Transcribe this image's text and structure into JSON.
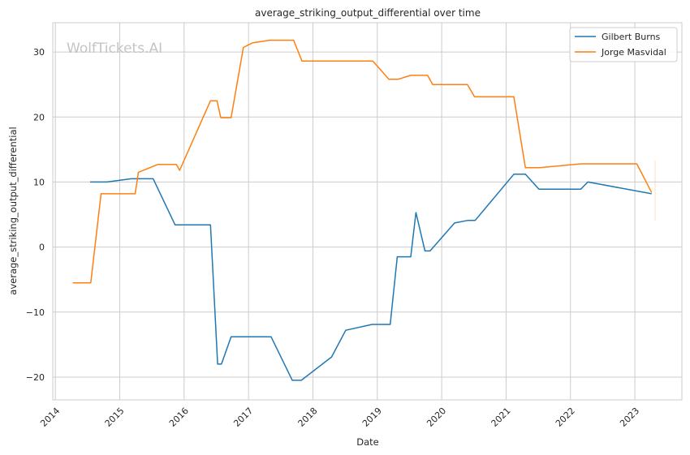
{
  "chart_data": {
    "type": "line",
    "title": "average_striking_output_differential over time",
    "xlabel": "Date",
    "ylabel": "average_striking_output_differential",
    "watermark": "WolfTickets.AI",
    "xlim": [
      2013.96,
      2023.73
    ],
    "ylim": [
      -23.5,
      34.5
    ],
    "x_ticks": [
      2014,
      2015,
      2016,
      2017,
      2018,
      2019,
      2020,
      2021,
      2022,
      2023
    ],
    "y_ticks": [
      -20,
      -10,
      0,
      10,
      20,
      30
    ],
    "y_tick_labels": [
      "−20",
      "−10",
      "0",
      "10",
      "20",
      "30"
    ],
    "grid": true,
    "legend_position": "top-right",
    "series": [
      {
        "name": "Gilbert Burns",
        "color": "#1f77b4",
        "points": [
          [
            2014.54,
            10.0
          ],
          [
            2014.8,
            10.0
          ],
          [
            2015.18,
            10.5
          ],
          [
            2015.52,
            10.5
          ],
          [
            2015.86,
            3.4
          ],
          [
            2016.41,
            3.4
          ],
          [
            2016.52,
            -18.0
          ],
          [
            2016.58,
            -18.0
          ],
          [
            2016.73,
            -13.8
          ],
          [
            2017.35,
            -13.8
          ],
          [
            2017.68,
            -20.5
          ],
          [
            2017.82,
            -20.5
          ],
          [
            2018.29,
            -16.9
          ],
          [
            2018.51,
            -12.8
          ],
          [
            2018.92,
            -11.9
          ],
          [
            2019.2,
            -11.9
          ],
          [
            2019.31,
            -1.5
          ],
          [
            2019.52,
            -1.5
          ],
          [
            2019.6,
            5.3
          ],
          [
            2019.74,
            -0.6
          ],
          [
            2019.82,
            -0.6
          ],
          [
            2020.2,
            3.7
          ],
          [
            2020.41,
            4.1
          ],
          [
            2020.52,
            4.1
          ],
          [
            2021.12,
            11.2
          ],
          [
            2021.3,
            11.2
          ],
          [
            2021.51,
            8.9
          ],
          [
            2022.16,
            8.9
          ],
          [
            2022.27,
            10.0
          ],
          [
            2023.26,
            8.2
          ]
        ]
      },
      {
        "name": "Jorge Masvidal",
        "color": "#ff7f0e",
        "points": [
          [
            2014.27,
            -5.5
          ],
          [
            2014.55,
            -5.5
          ],
          [
            2014.71,
            8.2
          ],
          [
            2015.24,
            8.2
          ],
          [
            2015.29,
            11.5
          ],
          [
            2015.59,
            12.7
          ],
          [
            2015.88,
            12.7
          ],
          [
            2015.93,
            11.8
          ],
          [
            2016.41,
            22.5
          ],
          [
            2016.51,
            22.5
          ],
          [
            2016.57,
            19.9
          ],
          [
            2016.73,
            19.9
          ],
          [
            2016.92,
            30.7
          ],
          [
            2017.06,
            31.4
          ],
          [
            2017.33,
            31.8
          ],
          [
            2017.7,
            31.8
          ],
          [
            2017.83,
            28.6
          ],
          [
            2018.93,
            28.6
          ],
          [
            2019.18,
            25.8
          ],
          [
            2019.32,
            25.8
          ],
          [
            2019.52,
            26.4
          ],
          [
            2019.78,
            26.4
          ],
          [
            2019.86,
            25.0
          ],
          [
            2020.4,
            25.0
          ],
          [
            2020.51,
            23.1
          ],
          [
            2021.12,
            23.1
          ],
          [
            2021.3,
            12.2
          ],
          [
            2021.52,
            12.2
          ],
          [
            2022.16,
            12.8
          ],
          [
            2023.03,
            12.8
          ],
          [
            2023.26,
            8.4
          ]
        ]
      }
    ]
  }
}
